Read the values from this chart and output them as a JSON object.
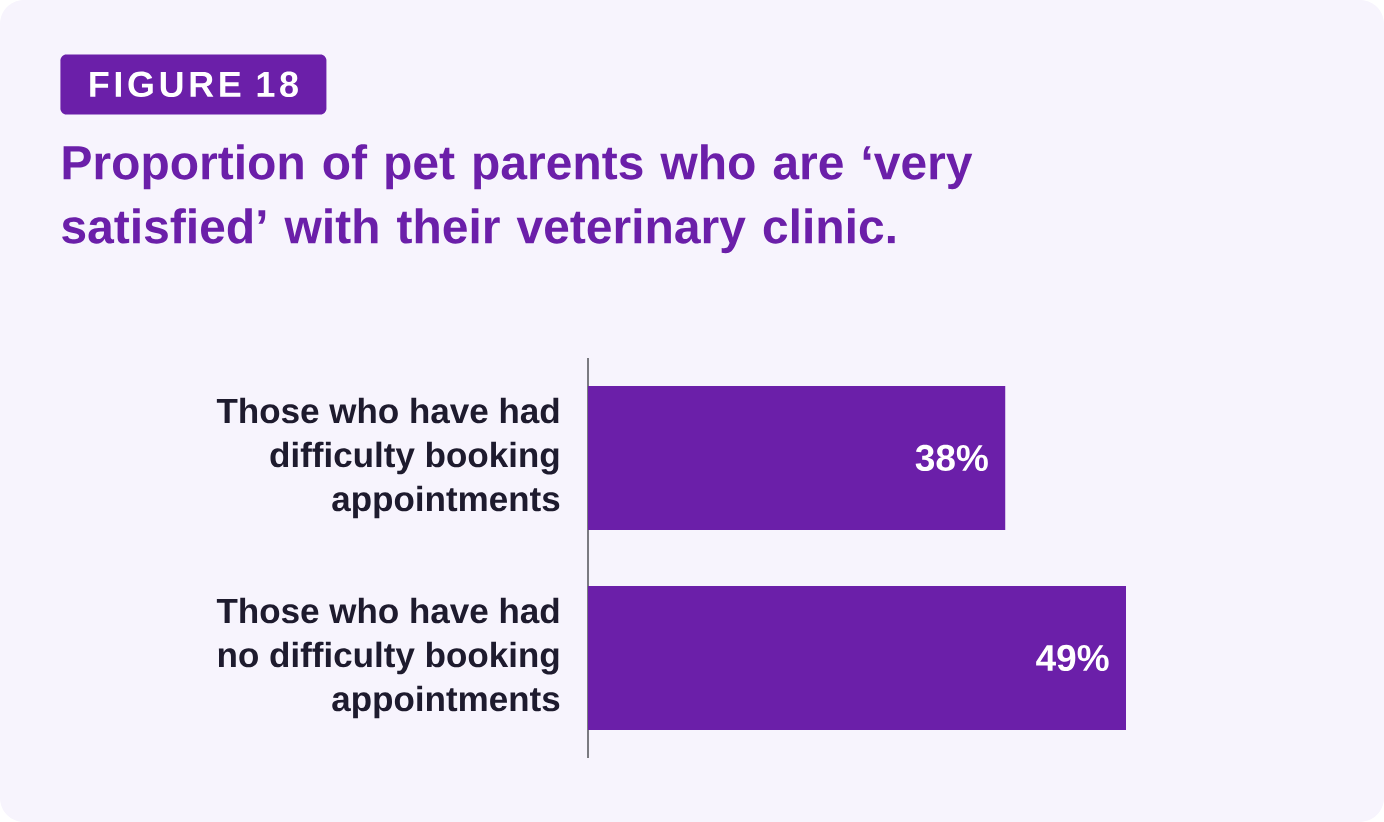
{
  "chart_data": {
    "type": "bar",
    "orientation": "horizontal",
    "title": "Proportion of pet parents who are ‘very satisfied’ with their veterinary clinic.",
    "annotations": [
      "FIGURE 18"
    ],
    "categories": [
      "Those who have had difficulty booking appointments",
      "Those who have had no difficulty booking appointments"
    ],
    "values": [
      38,
      49
    ],
    "value_labels": [
      "38%",
      "49%"
    ],
    "color": "#6b1fa9",
    "tick_labels": "y"
  }
}
